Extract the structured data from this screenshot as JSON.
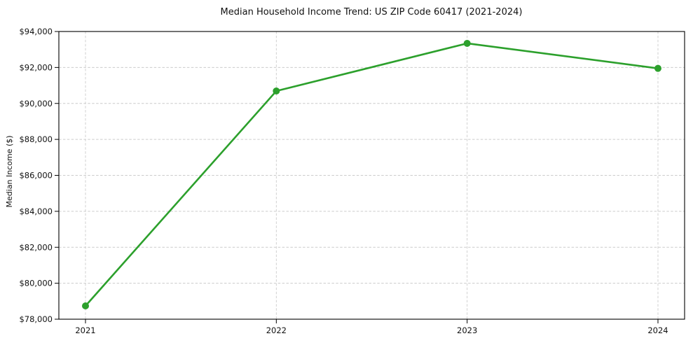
{
  "chart_data": {
    "type": "line",
    "title": "Median Household Income Trend: US ZIP Code 60417 (2021-2024)",
    "categories": [
      "2021",
      "2022",
      "2023",
      "2024"
    ],
    "x": [
      2021,
      2022,
      2023,
      2024
    ],
    "values": [
      78740,
      90690,
      93340,
      91950
    ],
    "xlabel": "",
    "ylabel": "Median Income ($)",
    "ylim": [
      78000,
      94000
    ],
    "ytick_step": 2000,
    "ytick_prefix": "$",
    "ytick_labels": [
      "$78,000",
      "$80,000",
      "$82,000",
      "$84,000",
      "$86,000",
      "$88,000",
      "$90,000",
      "$92,000",
      "$94,000"
    ],
    "grid": "both-axes-dashed",
    "legend": "none",
    "line_color": "#2ca02c",
    "marker_color": "#2ca02c",
    "marker_style": "circle",
    "grid_color": "#cccccc",
    "axis_color": "#000000",
    "text_color": "#111111",
    "background_color": "#ffffff"
  }
}
